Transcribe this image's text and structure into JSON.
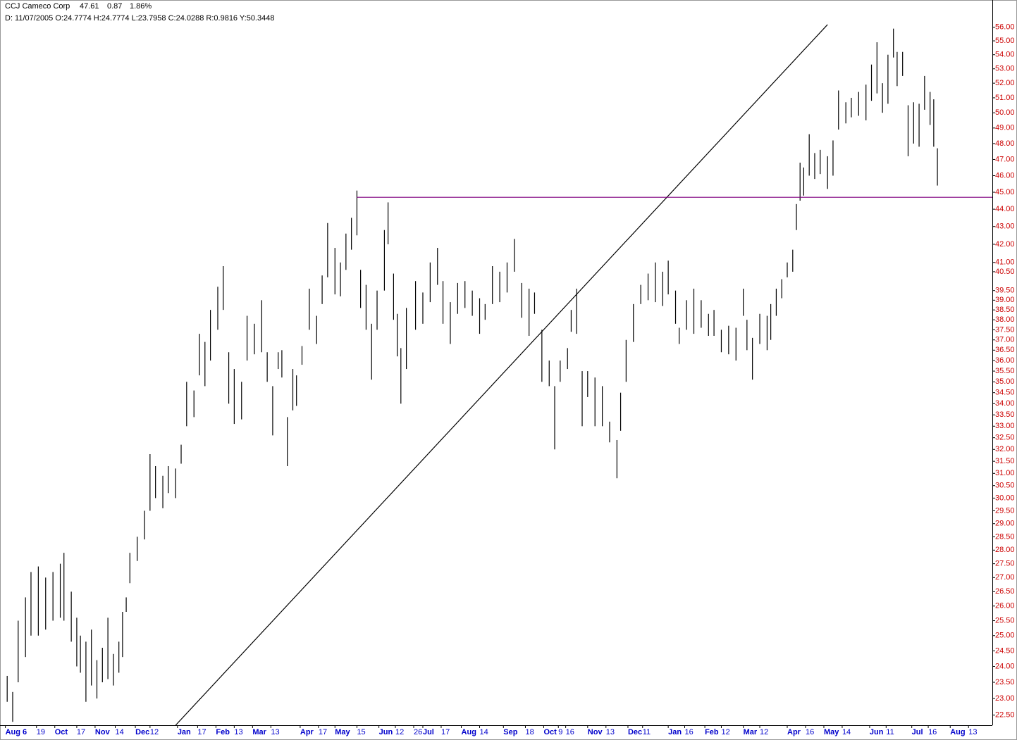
{
  "chart_data": {
    "type": "range-bar",
    "title": "CCJ Cameco Corp",
    "last": "47.61",
    "change": "0.87",
    "change_pct": "1.86%",
    "info": "D: 11/07/2005 O:24.7774 H:24.7774 L:23.7958 C:24.0288 R:0.9816 Y:50.3448",
    "log": true,
    "color": "#000000",
    "change_color": "#00aa00",
    "ytick_color": "#cc0000",
    "xtick_color": "#0000cc",
    "ylim": [
      22.2,
      57.9
    ],
    "yticks": [
      {
        "value": 56,
        "label": "56.00"
      },
      {
        "value": 55,
        "label": "55.00"
      },
      {
        "value": 54,
        "label": "54.00"
      },
      {
        "value": 53,
        "label": "53.00"
      },
      {
        "value": 52,
        "label": "52.00"
      },
      {
        "value": 51,
        "label": "51.00"
      },
      {
        "value": 50,
        "label": "50.00"
      },
      {
        "value": 49,
        "label": "49.00"
      },
      {
        "value": 48,
        "label": "48.00"
      },
      {
        "value": 47,
        "label": "47.00"
      },
      {
        "value": 46,
        "label": "46.00"
      },
      {
        "value": 45,
        "label": "45.00"
      },
      {
        "value": 44,
        "label": "44.00"
      },
      {
        "value": 43,
        "label": "43.00"
      },
      {
        "value": 42,
        "label": "42.00"
      },
      {
        "value": 41,
        "label": "41.00"
      },
      {
        "value": 40.5,
        "label": "40.50"
      },
      {
        "value": 39.5,
        "label": "39.50"
      },
      {
        "value": 39,
        "label": "39.00"
      },
      {
        "value": 38.5,
        "label": "38.50"
      },
      {
        "value": 38,
        "label": "38.00"
      },
      {
        "value": 37.5,
        "label": "37.50"
      },
      {
        "value": 37,
        "label": "37.00"
      },
      {
        "value": 36.5,
        "label": "36.50"
      },
      {
        "value": 36,
        "label": "36.00"
      },
      {
        "value": 35.5,
        "label": "35.50"
      },
      {
        "value": 35,
        "label": "35.00"
      },
      {
        "value": 34.5,
        "label": "34.50"
      },
      {
        "value": 34,
        "label": "34.00"
      },
      {
        "value": 33.5,
        "label": "33.50"
      },
      {
        "value": 33,
        "label": "33.00"
      },
      {
        "value": 32.5,
        "label": "32.50"
      },
      {
        "value": 32,
        "label": "32.00"
      },
      {
        "value": 31.5,
        "label": "31.50"
      },
      {
        "value": 31,
        "label": "31.00"
      },
      {
        "value": 30.5,
        "label": "30.50"
      },
      {
        "value": 30,
        "label": "30.00"
      },
      {
        "value": 29.5,
        "label": "29.50"
      },
      {
        "value": 29,
        "label": "29.00"
      },
      {
        "value": 28.5,
        "label": "28.50"
      },
      {
        "value": 28,
        "label": "28.00"
      },
      {
        "value": 27.5,
        "label": "27.50"
      },
      {
        "value": 27,
        "label": "27.00"
      },
      {
        "value": 26.5,
        "label": "26.50"
      },
      {
        "value": 26,
        "label": "26.00"
      },
      {
        "value": 25.5,
        "label": "25.50"
      },
      {
        "value": 25,
        "label": "25.00"
      },
      {
        "value": 24.5,
        "label": "24.50"
      },
      {
        "value": 24,
        "label": "24.00"
      },
      {
        "value": 23.5,
        "label": "23.50"
      },
      {
        "value": 23,
        "label": "23.00"
      },
      {
        "value": 22.5,
        "label": "22.50"
      }
    ],
    "xlim": [
      0,
      540
    ],
    "xticks": [
      {
        "value": 1,
        "label": "Aug 6"
      },
      {
        "value": 18,
        "label": "19"
      },
      {
        "value": 28,
        "label": "Oct"
      },
      {
        "value": 40,
        "label": "17"
      },
      {
        "value": 50,
        "label": "Nov"
      },
      {
        "value": 61,
        "label": "14"
      },
      {
        "value": 72,
        "label": "Dec"
      },
      {
        "value": 80,
        "label": "12"
      },
      {
        "value": 95,
        "label": "Jan"
      },
      {
        "value": 106,
        "label": "17"
      },
      {
        "value": 116,
        "label": "Feb"
      },
      {
        "value": 126,
        "label": "13"
      },
      {
        "value": 136,
        "label": "Mar"
      },
      {
        "value": 146,
        "label": "13"
      },
      {
        "value": 162,
        "label": "Apr"
      },
      {
        "value": 172,
        "label": "17"
      },
      {
        "value": 181,
        "label": "May"
      },
      {
        "value": 193,
        "label": "15"
      },
      {
        "value": 205,
        "label": "Jun"
      },
      {
        "value": 214,
        "label": "12"
      },
      {
        "value": 224,
        "label": "26"
      },
      {
        "value": 229,
        "label": "Jul"
      },
      {
        "value": 239,
        "label": "17"
      },
      {
        "value": 250,
        "label": "Aug"
      },
      {
        "value": 260,
        "label": "14"
      },
      {
        "value": 273,
        "label": "Sep"
      },
      {
        "value": 285,
        "label": "18"
      },
      {
        "value": 295,
        "label": "Oct"
      },
      {
        "value": 303,
        "label": "9"
      },
      {
        "value": 307,
        "label": "16"
      },
      {
        "value": 319,
        "label": "Nov"
      },
      {
        "value": 329,
        "label": "13"
      },
      {
        "value": 341,
        "label": "Dec"
      },
      {
        "value": 349,
        "label": "11"
      },
      {
        "value": 363,
        "label": "Jan"
      },
      {
        "value": 372,
        "label": "16"
      },
      {
        "value": 383,
        "label": "Feb"
      },
      {
        "value": 392,
        "label": "12"
      },
      {
        "value": 404,
        "label": "Mar"
      },
      {
        "value": 413,
        "label": "12"
      },
      {
        "value": 428,
        "label": "Apr"
      },
      {
        "value": 438,
        "label": "16"
      },
      {
        "value": 448,
        "label": "May"
      },
      {
        "value": 458,
        "label": "14"
      },
      {
        "value": 473,
        "label": "Jun"
      },
      {
        "value": 482,
        "label": "11"
      },
      {
        "value": 496,
        "label": "Jul"
      },
      {
        "value": 505,
        "label": "16"
      },
      {
        "value": 517,
        "label": "Aug"
      },
      {
        "value": 527,
        "label": "13"
      }
    ],
    "x": [
      2,
      5,
      8,
      12,
      15,
      19,
      23,
      27,
      31,
      33,
      37,
      40,
      42,
      45,
      48,
      51,
      54,
      57,
      60,
      63,
      65,
      67,
      69,
      73,
      77,
      80,
      83,
      87,
      90,
      94,
      97,
      100,
      104,
      107,
      110,
      113,
      117,
      120,
      123,
      126,
      130,
      133,
      137,
      141,
      144,
      147,
      150,
      152,
      155,
      158,
      160,
      163,
      167,
      171,
      174,
      177,
      181,
      184,
      187,
      190,
      193,
      195,
      198,
      201,
      204,
      208,
      210,
      213,
      215,
      217,
      220,
      225,
      229,
      233,
      237,
      240,
      244,
      248,
      252,
      256,
      260,
      263,
      267,
      271,
      275,
      279,
      283,
      287,
      290,
      294,
      298,
      301,
      304,
      308,
      310,
      313,
      316,
      319,
      323,
      327,
      331,
      335,
      337,
      340,
      344,
      348,
      352,
      356,
      360,
      363,
      367,
      369,
      373,
      377,
      381,
      385,
      388,
      392,
      396,
      400,
      404,
      406,
      409,
      413,
      417,
      419,
      422,
      425,
      428,
      431,
      433,
      435,
      437,
      440,
      443,
      446,
      450,
      453,
      456,
      460,
      463,
      467,
      471,
      474,
      477,
      480,
      483,
      486,
      488,
      491,
      494,
      497,
      500,
      503,
      506,
      508,
      510
    ],
    "high": [
      23.7,
      23.2,
      25.5,
      26.3,
      27.2,
      27.4,
      27.0,
      27.2,
      27.5,
      27.9,
      26.5,
      25.6,
      25.0,
      24.8,
      25.2,
      24.2,
      24.6,
      25.6,
      24.4,
      24.8,
      25.8,
      26.3,
      27.9,
      28.5,
      29.5,
      31.8,
      31.3,
      30.9,
      31.3,
      31.2,
      32.2,
      35.0,
      34.6,
      37.3,
      36.9,
      38.5,
      39.7,
      40.8,
      36.4,
      35.6,
      35.0,
      38.2,
      37.8,
      39.0,
      36.4,
      34.8,
      36.4,
      36.5,
      33.4,
      35.6,
      35.3,
      36.7,
      39.6,
      38.2,
      40.3,
      43.2,
      41.8,
      41.0,
      42.6,
      43.5,
      45.1,
      40.6,
      39.8,
      37.8,
      39.5,
      42.8,
      44.4,
      40.4,
      38.3,
      36.6,
      38.6,
      40.0,
      39.4,
      41.0,
      41.8,
      40.0,
      38.9,
      39.9,
      40.0,
      39.5,
      39.1,
      38.8,
      40.8,
      40.5,
      41.0,
      42.3,
      39.9,
      39.6,
      39.4,
      37.5,
      36.0,
      34.8,
      36.0,
      36.6,
      38.5,
      39.6,
      35.5,
      35.5,
      35.2,
      34.8,
      33.2,
      32.4,
      34.5,
      37.0,
      38.8,
      39.8,
      40.4,
      41.0,
      40.5,
      41.1,
      39.5,
      37.6,
      39.0,
      39.6,
      39.0,
      38.3,
      38.5,
      37.5,
      37.7,
      37.6,
      39.6,
      38.0,
      37.1,
      38.3,
      38.2,
      38.8,
      39.6,
      40.1,
      41.0,
      41.7,
      44.3,
      46.8,
      46.5,
      48.6,
      47.4,
      47.6,
      47.2,
      48.2,
      51.5,
      50.7,
      51.0,
      51.4,
      51.9,
      53.3,
      54.9,
      52.0,
      54.0,
      55.9,
      54.2,
      54.2,
      50.5,
      50.7,
      50.6,
      52.5,
      51.4,
      50.9,
      47.7
    ],
    "low": [
      22.9,
      22.3,
      23.5,
      24.3,
      25.0,
      25.0,
      25.2,
      25.5,
      25.6,
      25.5,
      24.8,
      24.0,
      23.8,
      22.9,
      23.4,
      23.0,
      23.5,
      23.6,
      23.4,
      23.8,
      24.3,
      25.8,
      26.8,
      27.6,
      28.4,
      29.5,
      30.0,
      29.6,
      30.2,
      30.0,
      31.4,
      33.0,
      33.4,
      35.3,
      34.8,
      36.0,
      37.5,
      38.5,
      34.0,
      33.1,
      33.3,
      36.0,
      36.3,
      36.4,
      35.0,
      32.6,
      35.6,
      35.2,
      31.3,
      33.7,
      33.9,
      35.8,
      37.5,
      36.8,
      38.8,
      40.2,
      39.3,
      39.2,
      40.6,
      41.7,
      42.5,
      38.6,
      37.5,
      35.1,
      37.5,
      39.5,
      42.0,
      38.0,
      36.2,
      34.0,
      35.6,
      37.5,
      37.8,
      38.9,
      39.8,
      37.8,
      36.8,
      38.3,
      38.6,
      38.2,
      37.3,
      38.0,
      38.8,
      38.9,
      39.4,
      40.5,
      38.1,
      37.2,
      38.3,
      35.0,
      34.8,
      32.0,
      35.0,
      35.6,
      37.4,
      37.3,
      33.0,
      34.3,
      33.0,
      33.0,
      32.3,
      30.8,
      32.8,
      35.0,
      36.9,
      38.8,
      39.0,
      38.9,
      38.7,
      39.3,
      37.8,
      36.8,
      37.5,
      37.3,
      37.6,
      37.2,
      37.2,
      36.4,
      36.3,
      36.0,
      38.2,
      36.5,
      35.1,
      36.8,
      36.5,
      37.0,
      38.2,
      39.1,
      40.2,
      40.5,
      42.8,
      44.5,
      44.8,
      46.0,
      45.8,
      46.1,
      45.2,
      46.0,
      48.9,
      49.3,
      49.7,
      49.8,
      49.5,
      50.8,
      51.3,
      50.0,
      50.6,
      53.8,
      51.8,
      52.5,
      47.2,
      48.0,
      47.8,
      50.2,
      49.2,
      47.8,
      45.4
    ],
    "trendlines": [
      {
        "x": [
          94,
          450
        ],
        "y": [
          22.2,
          56.2
        ],
        "color": "#000000"
      },
      {
        "x": [
          193,
          540
        ],
        "y": [
          44.7,
          44.7
        ],
        "color": "#800080"
      }
    ]
  }
}
